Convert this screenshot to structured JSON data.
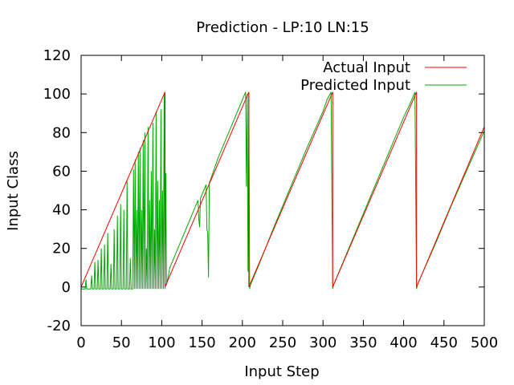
{
  "chart_data": {
    "type": "line",
    "title": "Prediction - LP:10 LN:15",
    "xlabel": "Input Step",
    "ylabel": "Input Class",
    "xlim": [
      0,
      500
    ],
    "ylim": [
      -20,
      120
    ],
    "x_ticks": [
      0,
      50,
      100,
      150,
      200,
      250,
      300,
      350,
      400,
      450,
      500
    ],
    "y_ticks": [
      -20,
      0,
      20,
      40,
      60,
      80,
      100,
      120
    ],
    "grid": false,
    "legend_position": "top-right",
    "series": [
      {
        "name": "Actual Input",
        "color": "#ff0000",
        "x": [
          0,
          104,
          104,
          208,
          208,
          312,
          312,
          416,
          416,
          500
        ],
        "y": [
          0,
          101,
          0,
          101,
          0,
          101,
          0,
          101,
          0,
          83
        ]
      },
      {
        "name": "Predicted Input",
        "color": "#00aa00",
        "x": [
          0,
          5,
          6,
          7,
          8,
          12,
          13,
          14,
          16,
          17,
          18,
          20,
          21,
          22,
          24,
          25,
          26,
          28,
          29,
          30,
          32,
          33,
          34,
          36,
          37,
          38,
          40,
          41,
          42,
          44,
          45,
          46,
          48,
          49,
          50,
          52,
          53,
          54,
          56,
          57,
          58,
          60,
          61,
          62,
          64,
          65,
          66,
          67,
          68,
          69,
          70,
          71,
          72,
          73,
          74,
          75,
          76,
          77,
          78,
          79,
          80,
          81,
          82,
          83,
          84,
          85,
          86,
          87,
          88,
          89,
          90,
          91,
          92,
          93,
          94,
          95,
          96,
          97,
          98,
          99,
          100,
          101,
          102,
          103,
          104,
          105,
          106,
          110,
          120,
          130,
          140,
          145,
          146,
          147,
          148,
          150,
          155,
          156,
          157,
          158,
          159,
          160,
          170,
          180,
          190,
          200,
          204,
          205,
          206,
          207,
          208,
          209,
          210,
          220,
          240,
          260,
          280,
          300,
          305,
          310,
          311,
          312,
          313,
          314,
          320,
          340,
          360,
          380,
          400,
          408,
          414,
          415,
          416,
          417,
          418,
          420,
          440,
          460,
          480,
          500
        ],
        "y": [
          -1,
          -1,
          4,
          -1,
          -1,
          -1,
          6,
          -1,
          -1,
          13,
          -1,
          -1,
          14,
          -1,
          -1,
          20,
          -1,
          -1,
          22,
          -1,
          -1,
          28,
          -1,
          -1,
          12,
          -1,
          -1,
          30,
          -1,
          -1,
          37,
          -1,
          -1,
          43,
          -1,
          -1,
          40,
          -1,
          -1,
          55,
          -1,
          -1,
          15,
          -1,
          -1,
          61,
          -1,
          66,
          -1,
          40,
          -1,
          70,
          -1,
          72,
          -1,
          40,
          -1,
          76,
          -1,
          80,
          -1,
          20,
          -1,
          83,
          -1,
          45,
          -1,
          60,
          -1,
          85,
          -1,
          30,
          -1,
          91,
          -1,
          55,
          -1,
          45,
          -1,
          92,
          -1,
          50,
          -1,
          100,
          -1,
          59,
          1,
          10,
          20,
          30,
          40,
          45,
          35,
          31,
          46,
          48,
          53,
          30,
          28,
          5,
          54,
          55,
          67,
          77,
          87,
          97,
          101,
          52,
          100,
          8,
          101,
          -1,
          1,
          11,
          32,
          52,
          72,
          91,
          97,
          101,
          50,
          -1,
          1,
          2,
          8,
          28,
          48,
          68,
          88,
          95,
          101,
          50,
          -1,
          1,
          2,
          4,
          23,
          43,
          62,
          81
        ]
      }
    ]
  }
}
